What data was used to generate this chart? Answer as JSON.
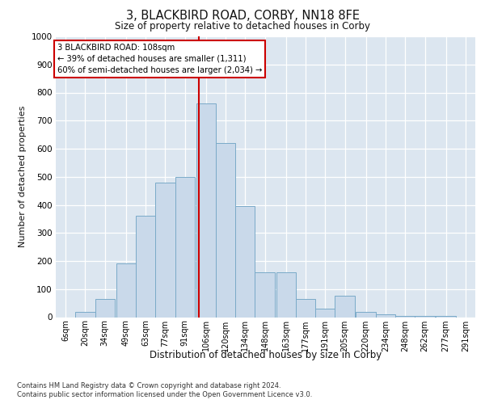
{
  "title": "3, BLACKBIRD ROAD, CORBY, NN18 8FE",
  "subtitle": "Size of property relative to detached houses in Corby",
  "xlabel": "Distribution of detached houses by size in Corby",
  "ylabel": "Number of detached properties",
  "footer_line1": "Contains HM Land Registry data © Crown copyright and database right 2024.",
  "footer_line2": "Contains public sector information licensed under the Open Government Licence v3.0.",
  "annotation_line1": "3 BLACKBIRD ROAD: 108sqm",
  "annotation_line2": "← 39% of detached houses are smaller (1,311)",
  "annotation_line3": "60% of semi-detached houses are larger (2,034) →",
  "bar_color": "#c9d9ea",
  "bar_edgecolor": "#7aaac8",
  "vline_color": "#cc0000",
  "plot_bg_color": "#dce6f0",
  "grid_color": "#ffffff",
  "categories": [
    "6sqm",
    "20sqm",
    "34sqm",
    "49sqm",
    "63sqm",
    "77sqm",
    "91sqm",
    "106sqm",
    "120sqm",
    "134sqm",
    "148sqm",
    "163sqm",
    "177sqm",
    "191sqm",
    "205sqm",
    "220sqm",
    "234sqm",
    "248sqm",
    "262sqm",
    "277sqm",
    "291sqm"
  ],
  "bin_starts": [
    6,
    20,
    34,
    49,
    63,
    77,
    91,
    106,
    120,
    134,
    148,
    163,
    177,
    191,
    205,
    220,
    234,
    248,
    262,
    277,
    291
  ],
  "bin_width": 14,
  "values": [
    0,
    20,
    65,
    190,
    360,
    480,
    500,
    760,
    620,
    395,
    160,
    160,
    65,
    30,
    75,
    20,
    10,
    5,
    5,
    5,
    0
  ],
  "ylim": [
    0,
    1000
  ],
  "yticks": [
    0,
    100,
    200,
    300,
    400,
    500,
    600,
    700,
    800,
    900,
    1000
  ],
  "vline_x": 108,
  "annotation_box_facecolor": "#ffffff",
  "annotation_box_edgecolor": "#cc0000"
}
